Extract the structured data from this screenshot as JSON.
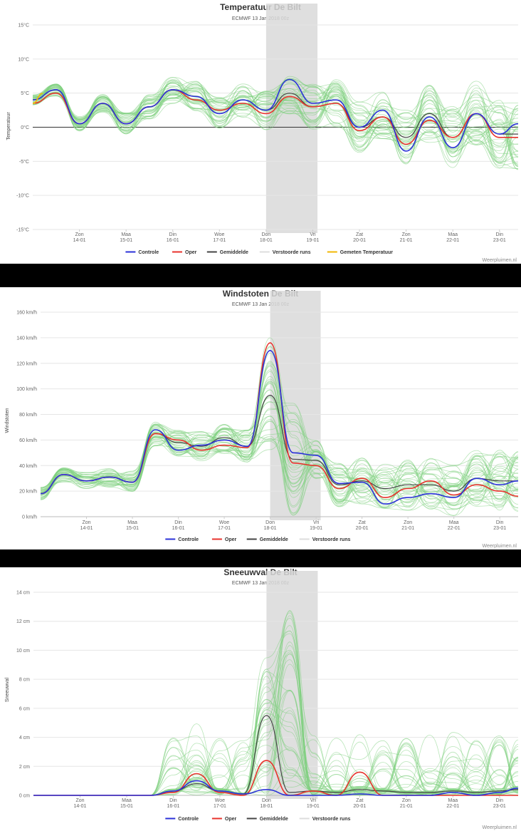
{
  "x_days": [
    {
      "day": "Zon",
      "date": "14-01"
    },
    {
      "day": "Maa",
      "date": "15-01"
    },
    {
      "day": "Din",
      "date": "16-01"
    },
    {
      "day": "Woe",
      "date": "17-01"
    },
    {
      "day": "Don",
      "date": "18-01"
    },
    {
      "day": "Vri",
      "date": "19-01"
    },
    {
      "day": "Zat",
      "date": "20-01"
    },
    {
      "day": "Zon",
      "date": "21-01"
    },
    {
      "day": "Maa",
      "date": "22-01"
    },
    {
      "day": "Din",
      "date": "23-01"
    }
  ],
  "credit": "Weerpluimen.nl",
  "colors": {
    "controle": "#2b32d8",
    "oper": "#e8332d",
    "gemiddelde": "#444444",
    "verstoorde": "#7ed07e",
    "gemeten": "#f2b705",
    "highlight": "#d9d9d9"
  },
  "chart_data": [
    {
      "type": "line",
      "title": "Temperatuur De Bilt",
      "subtitle": "ECMWF 13 Jan 2018 00z",
      "ylabel": "Temperatuur",
      "ylim": [
        -15,
        15
      ],
      "yticks": [
        -15,
        -10,
        -5,
        0,
        5,
        10,
        15
      ],
      "ytick_labels": [
        "-15°C",
        "-10°C",
        "-5°C",
        "0°C",
        "5°C",
        "10°C",
        "15°C"
      ],
      "x": [
        13.0,
        13.5,
        14.0,
        14.5,
        15.0,
        15.5,
        16.0,
        16.5,
        17.0,
        17.5,
        18.0,
        18.5,
        19.0,
        19.5,
        20.0,
        20.5,
        21.0,
        21.5,
        22.0,
        22.5,
        23.0,
        23.5
      ],
      "xlim": [
        13.0,
        23.4
      ],
      "highlight_range": [
        18.0,
        19.1
      ],
      "legend": [
        "Controle",
        "Oper",
        "Gemiddelde",
        "Verstoorde runs",
        "Gemeten Temperatuur"
      ],
      "series": [
        {
          "name": "Controle",
          "values": [
            4.0,
            5.5,
            0.5,
            3.5,
            0.5,
            3.0,
            5.5,
            4.5,
            2.0,
            4.0,
            2.5,
            7.0,
            3.5,
            4.0,
            0.0,
            2.5,
            -3.5,
            1.5,
            -3.0,
            2.0,
            -1.0,
            0.5
          ]
        },
        {
          "name": "Oper",
          "values": [
            3.5,
            5.0,
            0.5,
            3.5,
            0.5,
            3.0,
            5.5,
            4.0,
            2.5,
            3.5,
            2.0,
            4.5,
            3.0,
            3.5,
            -0.5,
            1.5,
            -2.5,
            1.0,
            -1.5,
            2.0,
            -1.5,
            -1.5
          ]
        },
        {
          "name": "Gemiddelde",
          "values": [
            4.0,
            5.5,
            0.5,
            3.5,
            0.5,
            3.0,
            5.5,
            4.5,
            2.0,
            4.0,
            2.5,
            5.0,
            3.0,
            3.5,
            0.0,
            1.5,
            -1.5,
            2.0,
            -1.5,
            2.0,
            -1.0,
            -1.0
          ]
        },
        {
          "name": "Gemeten Temperatuur",
          "values": [
            3.5,
            null,
            null,
            null,
            null,
            null,
            null,
            null,
            null,
            null,
            null,
            null,
            null,
            null,
            null,
            null,
            null,
            null,
            null,
            null,
            null,
            null
          ]
        }
      ]
    },
    {
      "type": "line",
      "title": "Windstoten De Bilt",
      "subtitle": "ECMWF 13 Jan 2018 00z",
      "ylabel": "Windstoten",
      "ylim": [
        0,
        160
      ],
      "yticks": [
        0,
        20,
        40,
        60,
        80,
        100,
        120,
        140,
        160
      ],
      "ytick_labels": [
        "0 km/h",
        "20 km/h",
        "40 km/h",
        "60 km/h",
        "80 km/h",
        "100 km/h",
        "120 km/h",
        "140 km/h",
        "160 km/h"
      ],
      "x": [
        13.0,
        13.5,
        14.0,
        14.5,
        15.0,
        15.5,
        16.0,
        16.5,
        17.0,
        17.5,
        18.0,
        18.5,
        19.0,
        19.5,
        20.0,
        20.5,
        21.0,
        21.5,
        22.0,
        22.5,
        23.0,
        23.5
      ],
      "xlim": [
        13.0,
        23.4
      ],
      "highlight_range": [
        18.0,
        19.1
      ],
      "legend": [
        "Controle",
        "Oper",
        "Gemiddelde",
        "Verstoorde runs"
      ],
      "series": [
        {
          "name": "Controle",
          "values": [
            18,
            33,
            28,
            31,
            27,
            68,
            52,
            56,
            60,
            55,
            130,
            50,
            48,
            26,
            27,
            10,
            15,
            18,
            15,
            30,
            25,
            28
          ]
        },
        {
          "name": "Oper",
          "values": [
            18,
            33,
            28,
            31,
            27,
            65,
            60,
            52,
            56,
            54,
            136,
            42,
            40,
            22,
            30,
            15,
            22,
            28,
            17,
            25,
            20,
            16
          ]
        },
        {
          "name": "Gemiddelde",
          "values": [
            18,
            33,
            28,
            31,
            27,
            65,
            58,
            55,
            62,
            55,
            95,
            45,
            44,
            25,
            28,
            22,
            25,
            25,
            20,
            30,
            28,
            28
          ]
        }
      ]
    },
    {
      "type": "line",
      "title": "Sneeuwval De Bilt",
      "subtitle": "ECMWF 13 Jan 2018 00z",
      "ylabel": "Sneeuwval",
      "ylim": [
        0,
        14
      ],
      "yticks": [
        0,
        2,
        4,
        6,
        8,
        10,
        12,
        14
      ],
      "ytick_labels": [
        "0 cm",
        "2 cm",
        "4 cm",
        "6 cm",
        "8 cm",
        "10 cm",
        "12 cm",
        "14 cm"
      ],
      "x": [
        13.0,
        13.5,
        14.0,
        14.5,
        15.0,
        15.5,
        16.0,
        16.5,
        17.0,
        17.5,
        18.0,
        18.5,
        19.0,
        19.5,
        20.0,
        20.5,
        21.0,
        21.5,
        22.0,
        22.5,
        23.0,
        23.5
      ],
      "xlim": [
        13.0,
        23.4
      ],
      "highlight_range": [
        18.0,
        19.1
      ],
      "legend": [
        "Controle",
        "Oper",
        "Gemiddelde",
        "Verstoorde runs"
      ],
      "series": [
        {
          "name": "Controle",
          "values": [
            0,
            0,
            0,
            0,
            0,
            0,
            0.3,
            1.0,
            0.3,
            0.1,
            0.4,
            0,
            0,
            0,
            0.1,
            0,
            0,
            0,
            0.2,
            0,
            0.2,
            0.5
          ]
        },
        {
          "name": "Oper",
          "values": [
            0,
            0,
            0,
            0,
            0,
            0,
            0.2,
            1.5,
            0.2,
            0,
            2.4,
            0,
            0.3,
            0,
            1.6,
            0,
            0,
            0,
            0,
            0,
            0,
            0
          ]
        },
        {
          "name": "Gemiddelde",
          "values": [
            0,
            0,
            0,
            0,
            0,
            0,
            0.3,
            0.8,
            0.3,
            0.1,
            5.5,
            0.2,
            0.3,
            0.2,
            0.4,
            0.3,
            0.2,
            0.2,
            0.3,
            0.2,
            0.3,
            0.4
          ]
        }
      ]
    }
  ]
}
